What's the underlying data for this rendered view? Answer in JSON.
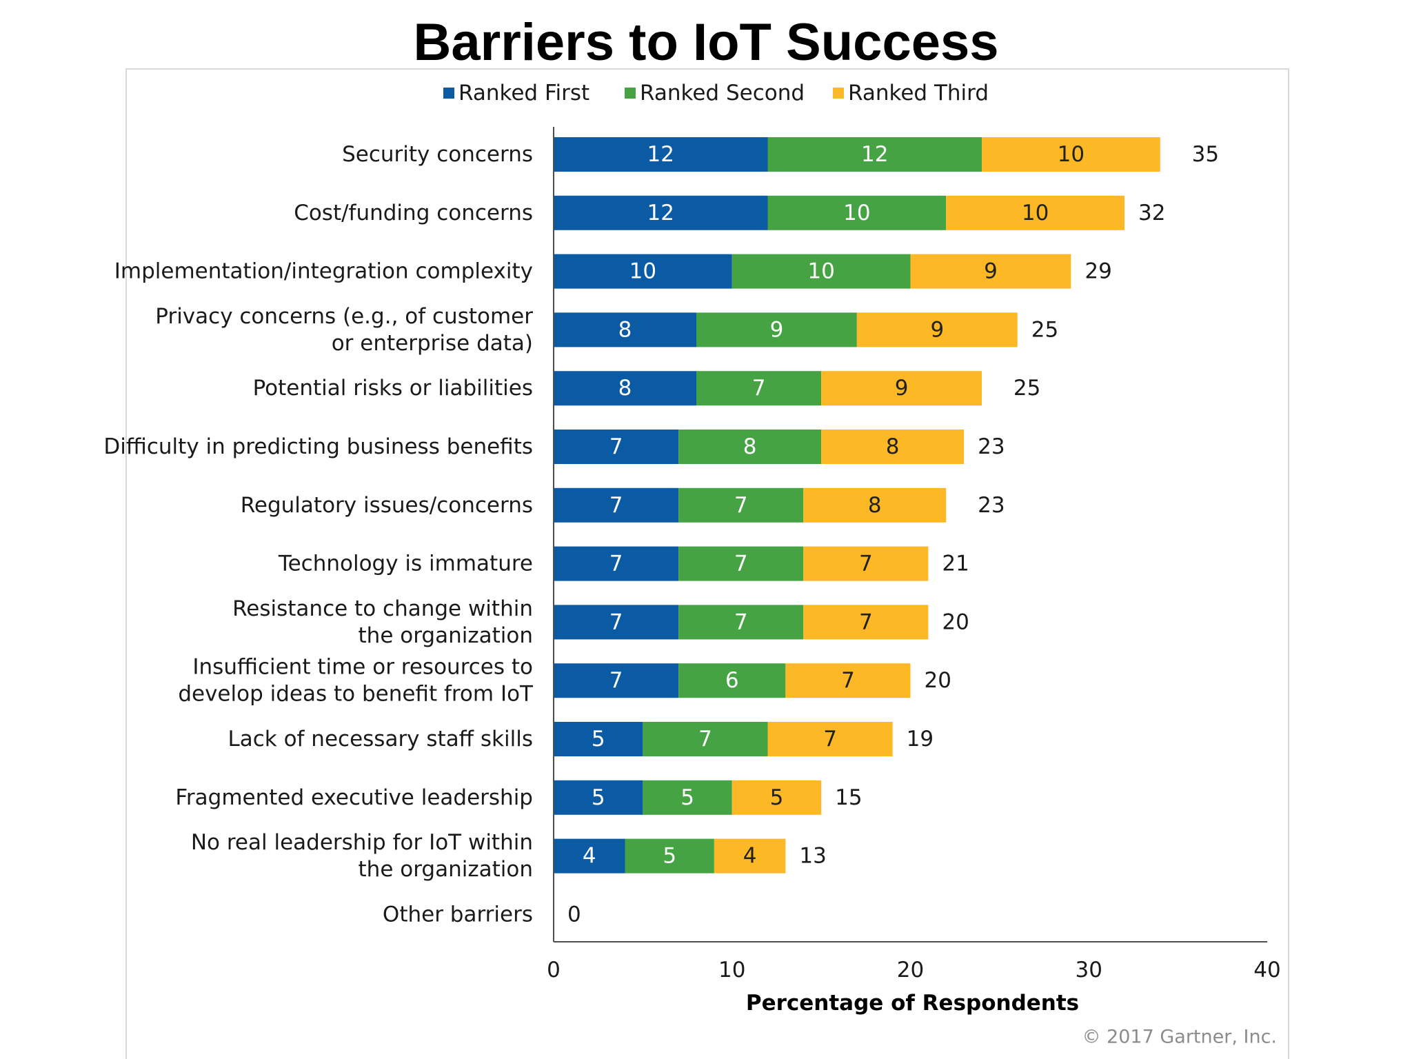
{
  "chart_data": {
    "type": "bar",
    "orientation": "horizontal",
    "stacked": true,
    "title": "Barriers to IoT Success",
    "xlabel": "Percentage of Respondents",
    "ylabel": "",
    "xlim": [
      0,
      40
    ],
    "xticks": [
      "0",
      "10",
      "20",
      "30",
      "40"
    ],
    "grid": false,
    "legend_position": "top",
    "categories": [
      [
        "Security concerns"
      ],
      [
        "Cost/funding concerns"
      ],
      [
        "Implementation/integration complexity"
      ],
      [
        "Privacy concerns (e.g., of customer",
        "or enterprise data)"
      ],
      [
        "Potential risks or liabilities"
      ],
      [
        "Difficulty in predicting business benefits"
      ],
      [
        "Regulatory issues/concerns"
      ],
      [
        "Technology is immature"
      ],
      [
        "Resistance to change within",
        "the organization"
      ],
      [
        "Insufficient time or resources to",
        "develop ideas to benefit from IoT"
      ],
      [
        "Lack of necessary staff skills"
      ],
      [
        "Fragmented executive leadership"
      ],
      [
        "No real leadership for IoT within",
        "the organization"
      ],
      [
        "Other barriers"
      ]
    ],
    "series": [
      {
        "name": "Ranked First",
        "color": "#0b5aa4",
        "values": [
          12,
          12,
          10,
          8,
          8,
          7,
          7,
          7,
          7,
          7,
          5,
          5,
          4,
          0
        ]
      },
      {
        "name": "Ranked Second",
        "color": "#46a343",
        "values": [
          12,
          10,
          10,
          9,
          7,
          8,
          7,
          7,
          7,
          6,
          7,
          5,
          5,
          0
        ]
      },
      {
        "name": "Ranked Third",
        "color": "#fdb825",
        "values": [
          10,
          10,
          9,
          9,
          9,
          8,
          8,
          7,
          7,
          7,
          7,
          5,
          4,
          0
        ]
      }
    ],
    "totals": [
      35,
      32,
      29,
      25,
      25,
      23,
      23,
      21,
      20,
      20,
      19,
      15,
      13,
      0
    ],
    "source": "© 2017 Gartner, Inc."
  }
}
